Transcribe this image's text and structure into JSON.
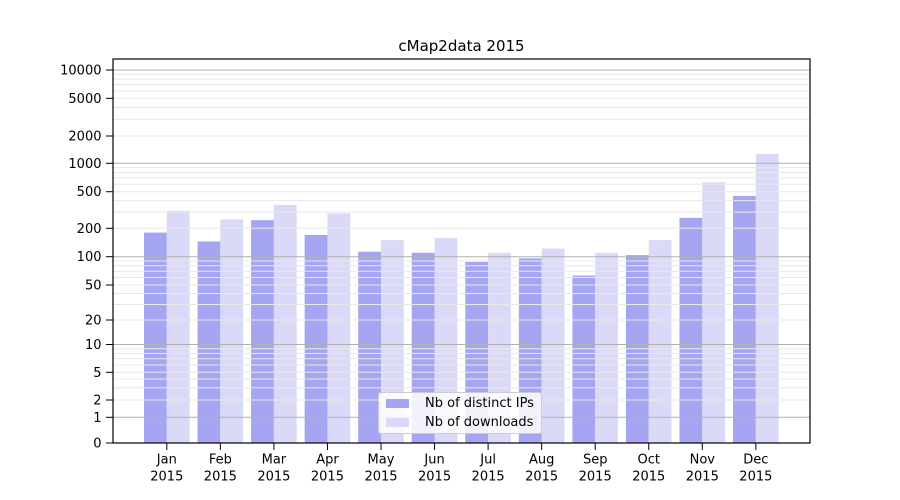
{
  "title": "cMap2data 2015",
  "chart_data": {
    "type": "bar",
    "title": "cMap2data 2015",
    "categories": [
      "Jan",
      "Feb",
      "Mar",
      "Apr",
      "May",
      "Jun",
      "Jul",
      "Aug",
      "Sep",
      "Oct",
      "Nov",
      "Dec"
    ],
    "category_year": "2015",
    "series": [
      {
        "name": "Nb of distinct IPs",
        "color": "#a5a5f2",
        "values": [
          180,
          145,
          245,
          170,
          113,
          110,
          88,
          96,
          63,
          104,
          260,
          450
        ]
      },
      {
        "name": "Nb of downloads",
        "color": "#dadaf8",
        "values": [
          310,
          250,
          360,
          290,
          150,
          158,
          110,
          122,
          110,
          150,
          630,
          1270
        ]
      }
    ],
    "yscale": "symlog",
    "yticks": [
      0,
      1,
      2,
      5,
      10,
      20,
      50,
      100,
      200,
      500,
      1000,
      2000,
      5000,
      10000
    ],
    "ylim": [
      0,
      13000
    ],
    "grid": "on",
    "legend_position": "bottom-center",
    "colors": {
      "grid_major": "#b0b0b0",
      "grid_minor": "#e8e8e8",
      "axis": "#000000",
      "text": "#000000",
      "legend_border": "#cccccc"
    }
  }
}
